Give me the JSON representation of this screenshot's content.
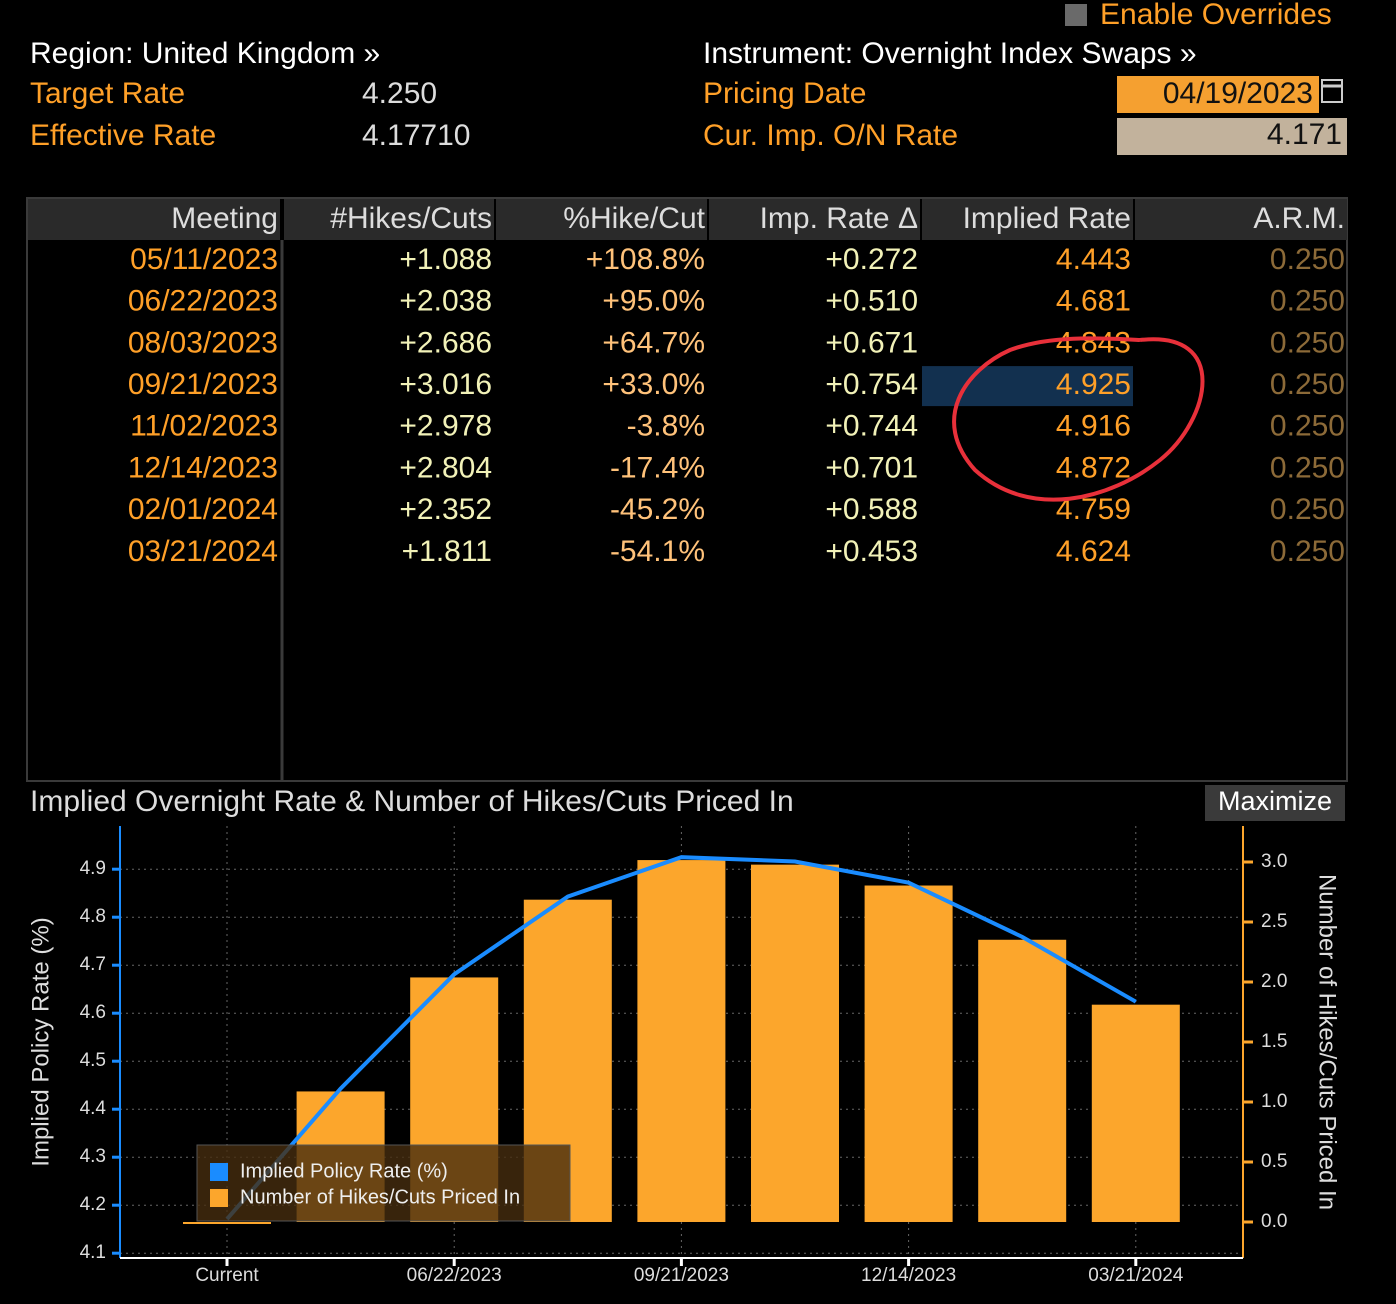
{
  "header": {
    "enable_overrides": "Enable Overrides",
    "region": "Region: United Kingdom »",
    "instrument": "Instrument: Overnight Index Swaps »",
    "target_rate_label": "Target Rate",
    "target_rate": "4.250",
    "effective_rate_label": "Effective Rate",
    "effective_rate": "4.17710",
    "pricing_date_label": "Pricing Date",
    "pricing_date": "04/19/2023",
    "cur_rate_label": "Cur. Imp. O/N Rate",
    "cur_rate": "4.171"
  },
  "table": {
    "columns": [
      "Meeting",
      "#Hikes/Cuts",
      "%Hike/Cut",
      "Imp. Rate Δ",
      "Implied Rate",
      "A.R.M."
    ],
    "rows": [
      [
        "05/11/2023",
        "+1.088",
        "+108.8%",
        "+0.272",
        "4.443",
        "0.250"
      ],
      [
        "06/22/2023",
        "+2.038",
        "+95.0%",
        "+0.510",
        "4.681",
        "0.250"
      ],
      [
        "08/03/2023",
        "+2.686",
        "+64.7%",
        "+0.671",
        "4.843",
        "0.250"
      ],
      [
        "09/21/2023",
        "+3.016",
        "+33.0%",
        "+0.754",
        "4.925",
        "0.250"
      ],
      [
        "11/02/2023",
        "+2.978",
        "-3.8%",
        "+0.744",
        "4.916",
        "0.250"
      ],
      [
        "12/14/2023",
        "+2.804",
        "-17.4%",
        "+0.701",
        "4.872",
        "0.250"
      ],
      [
        "02/01/2024",
        "+2.352",
        "-45.2%",
        "+0.588",
        "4.759",
        "0.250"
      ],
      [
        "03/21/2024",
        "+1.811",
        "-54.1%",
        "+0.453",
        "4.624",
        "0.250"
      ]
    ]
  },
  "chart_data": {
    "type": "bar-line",
    "title": "Implied Overnight Rate & Number of Hikes/Cuts Priced In",
    "button": "Maximize",
    "y_label": "Implied Policy Rate (%)",
    "y2_label": "Number of Hikes/Cuts Priced In",
    "categories": [
      "Current",
      null,
      "06/22/2023",
      null,
      "09/21/2023",
      null,
      "12/14/2023",
      null,
      "03/21/2024"
    ],
    "series": [
      {
        "name": "Implied Policy Rate (%)",
        "type": "line",
        "color": "#1a8cff",
        "values": [
          4.171,
          4.443,
          4.681,
          4.843,
          4.925,
          4.916,
          4.872,
          4.759,
          4.624
        ]
      },
      {
        "name": "Number of Hikes/Cuts Priced In",
        "type": "bar",
        "axis": "y2",
        "color": "#fca62c",
        "values": [
          0,
          1.088,
          2.038,
          2.686,
          3.016,
          2.978,
          2.804,
          2.352,
          1.811
        ]
      }
    ],
    "ylim": [
      4.09,
      4.99
    ],
    "yticks": [
      4.1,
      4.2,
      4.3,
      4.4,
      4.5,
      4.6,
      4.7,
      4.8,
      4.9
    ],
    "y2lim": [
      -0.3,
      3.3
    ],
    "y2ticks": [
      {
        "value": 0,
        "label": "0.0"
      },
      0.5,
      {
        "value": 1,
        "label": "1.0"
      },
      1.5,
      {
        "value": 2,
        "label": "2.0"
      },
      2.5,
      {
        "value": 3,
        "label": "3.0"
      }
    ],
    "grid": true,
    "legend": "lower left"
  }
}
